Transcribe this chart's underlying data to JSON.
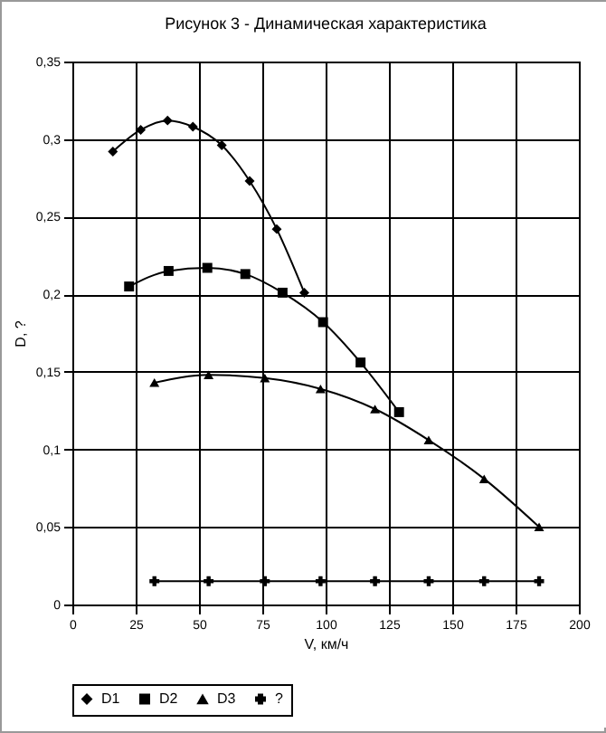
{
  "chart_data": {
    "type": "line",
    "title": "Рисунок 3 - Динамическая характеристика",
    "xlabel": "V, км/ч",
    "ylabel": "D, ?",
    "series": [
      {
        "name": "D1",
        "color": "#000000",
        "marker": "diamond",
        "x": [
          16,
          27,
          37.6,
          47.6,
          59,
          70,
          80.7,
          91.6
        ],
        "values": [
          0.292,
          0.306,
          0.312,
          0.308,
          0.296,
          0.273,
          0.242,
          0.201
        ]
      },
      {
        "name": "D2",
        "color": "#000000",
        "marker": "square",
        "x": [
          22.4,
          38,
          53.3,
          68.3,
          83,
          99,
          113.8,
          129
        ],
        "values": [
          0.205,
          0.215,
          0.217,
          0.213,
          0.201,
          0.182,
          0.156,
          0.124
        ]
      },
      {
        "name": "D3",
        "color": "#000000",
        "marker": "triangle",
        "x": [
          32.4,
          53.8,
          76,
          98,
          119.5,
          140.7,
          162.6,
          184.3
        ],
        "values": [
          0.143,
          0.148,
          0.146,
          0.139,
          0.126,
          0.106,
          0.081,
          0.05
        ]
      },
      {
        "name": "?",
        "color": "#000000",
        "marker": "cross",
        "x": [
          32.4,
          53.8,
          76,
          98,
          119.5,
          140.7,
          162.6,
          184.3
        ],
        "values": [
          0.015,
          0.015,
          0.015,
          0.015,
          0.015,
          0.015,
          0.015,
          0.015
        ]
      }
    ],
    "xlim": [
      0,
      200
    ],
    "xticks": [
      0,
      25,
      50,
      75,
      100,
      125,
      150,
      175,
      200
    ],
    "ylim": [
      0,
      0.35
    ],
    "yticks": [
      {
        "value": 0,
        "label": "0"
      },
      {
        "value": 0.05,
        "label": "0,05"
      },
      {
        "value": 0.1,
        "label": "0,1"
      },
      {
        "value": 0.15,
        "label": "0,15"
      },
      {
        "value": 0.2,
        "label": "0,2"
      },
      {
        "value": 0.25,
        "label": "0,25"
      },
      {
        "value": 0.3,
        "label": "0,3"
      },
      {
        "value": 0.35,
        "label": "0,35"
      }
    ],
    "grid": true,
    "legend": "bottom",
    "line_style": "solid"
  }
}
